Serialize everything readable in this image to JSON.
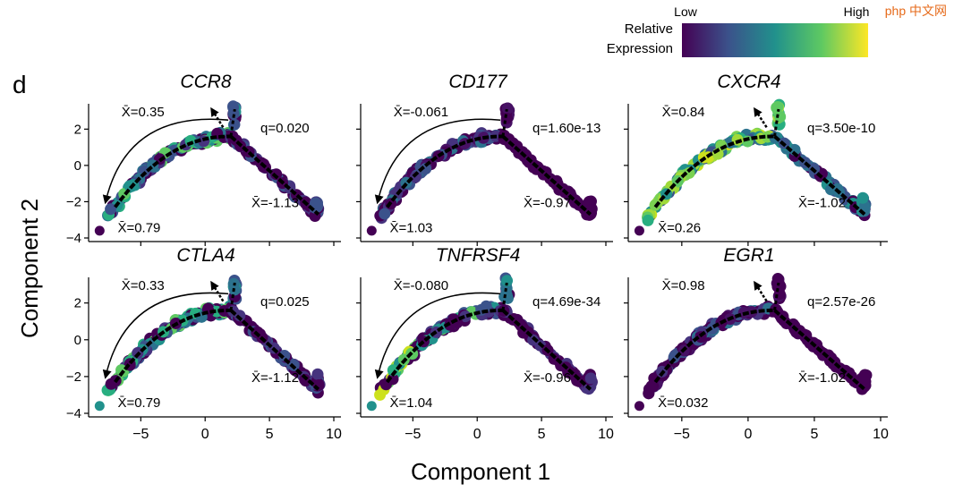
{
  "panel_letter": "d",
  "axis_x_title": "Component 1",
  "axis_y_title": "Component 2",
  "x_ticks": [
    -5,
    0,
    5,
    10
  ],
  "y_ticks": [
    2,
    0,
    -2,
    -4
  ],
  "legend": {
    "title_line1": "Relative",
    "title_line2": "Expression",
    "low_label": "Low",
    "high_label": "High",
    "colors": [
      "#440154",
      "#3b528b",
      "#21918c",
      "#5ec962",
      "#fde725"
    ]
  },
  "watermark": "php 中文网",
  "chart_data": [
    {
      "type": "scatter",
      "title": "CCR8",
      "x_range": [
        -8.5,
        10
      ],
      "y_range": [
        -4,
        3.2
      ],
      "arrow_up": {
        "label": "X̄=0.35"
      },
      "arrow_left": {
        "label": "X̄=0.79"
      },
      "branch_right": {
        "label": "X̄=-1.13"
      },
      "q_label": "q=0.020",
      "palette": "mixed",
      "curved_arrow": true,
      "up_arrow": true,
      "isolated_point_color": "#440154"
    },
    {
      "type": "scatter",
      "title": "CD177",
      "x_range": [
        -8.5,
        10
      ],
      "y_range": [
        -4,
        3.2
      ],
      "arrow_up": {
        "label": "X̄=-0.061"
      },
      "arrow_left": {
        "label": "X̄=1.03"
      },
      "branch_right": {
        "label": "X̄=-0.97"
      },
      "q_label": "q=1.60e-13",
      "palette": "purple",
      "curved_arrow": true,
      "up_arrow": false,
      "isolated_point_color": "#440154"
    },
    {
      "type": "scatter",
      "title": "CXCR4",
      "x_range": [
        -8.5,
        10
      ],
      "y_range": [
        -4,
        3.2
      ],
      "arrow_up": {
        "label": "X̄=0.84"
      },
      "arrow_left": {
        "label": "X̄=0.26"
      },
      "branch_right": {
        "label": "X̄=-1.02"
      },
      "q_label": "q=3.50e-10",
      "palette": "bright",
      "curved_arrow": false,
      "up_arrow": true,
      "isolated_point_color": "#440154"
    },
    {
      "type": "scatter",
      "title": "CTLA4",
      "x_range": [
        -8.5,
        10
      ],
      "y_range": [
        -4,
        3.2
      ],
      "arrow_up": {
        "label": "X̄=0.33"
      },
      "arrow_left": {
        "label": "X̄=0.79"
      },
      "branch_right": {
        "label": "X̄=-1.12"
      },
      "q_label": "q=0.025",
      "palette": "mixed",
      "curved_arrow": true,
      "up_arrow": true,
      "isolated_point_color": "#21918c"
    },
    {
      "type": "scatter",
      "title": "TNFRSF4",
      "x_range": [
        -8.5,
        10
      ],
      "y_range": [
        -4,
        3.2
      ],
      "arrow_up": {
        "label": "X̄=-0.080"
      },
      "arrow_left": {
        "label": "X̄=1.04"
      },
      "branch_right": {
        "label": "X̄=-0.96"
      },
      "q_label": "q=4.69e-34",
      "palette": "tnf",
      "curved_arrow": true,
      "up_arrow": false,
      "isolated_point_color": "#21918c"
    },
    {
      "type": "scatter",
      "title": "EGR1",
      "x_range": [
        -8.5,
        10
      ],
      "y_range": [
        -4,
        3.2
      ],
      "arrow_up": {
        "label": "X̄=0.98"
      },
      "arrow_left": {
        "label": "X̄=0.032"
      },
      "branch_right": {
        "label": "X̄=-1.02"
      },
      "q_label": "q=2.57e-26",
      "palette": "purple",
      "curved_arrow": false,
      "up_arrow": true,
      "isolated_point_color": "#440154"
    }
  ]
}
